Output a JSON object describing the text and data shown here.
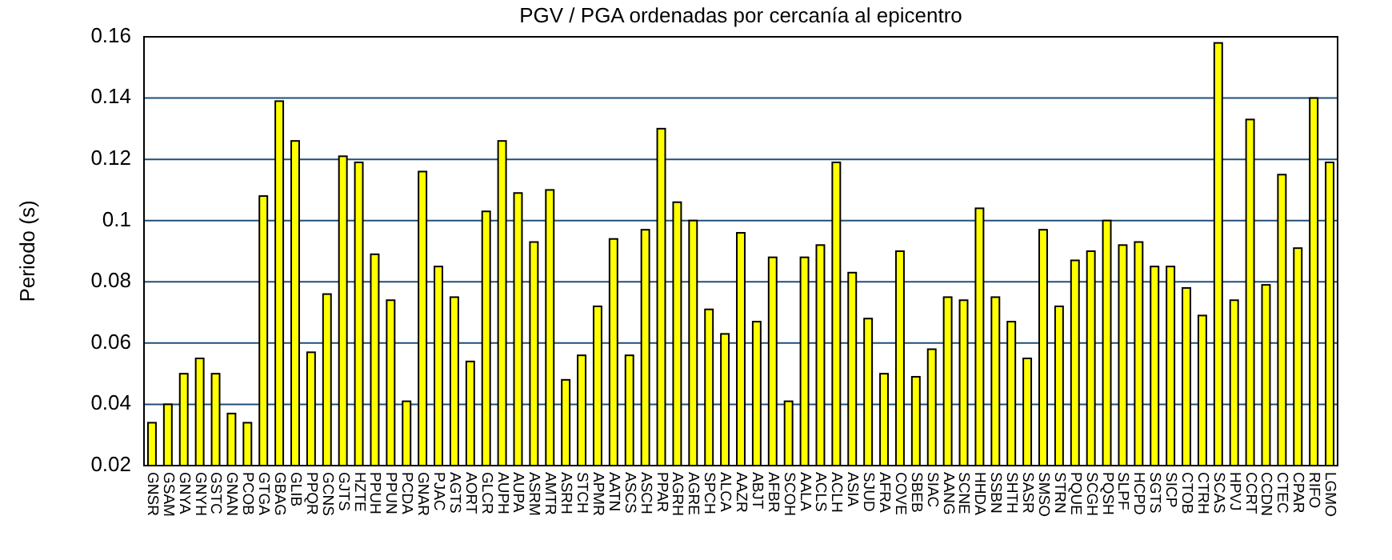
{
  "chart_data": {
    "type": "bar",
    "title": "PGV / PGA ordenadas por cercanía al epicentro",
    "ylabel": "Periodo (s)",
    "categories": [
      "GNSR",
      "GSAM",
      "GNYA",
      "GNYH",
      "GSTC",
      "GNAN",
      "PCOB",
      "GTGA",
      "GBAG",
      "GLIB",
      "PPQR",
      "GCNS",
      "GJTS",
      "HZTE",
      "PPUH",
      "PPUN",
      "PCDA",
      "GNAR",
      "PJAC",
      "AGTS",
      "AORT",
      "GLCR",
      "AUPH",
      "AUPA",
      "ASRM",
      "AMTR",
      "ASRH",
      "STCH",
      "APMR",
      "AATN",
      "ASCS",
      "ASCH",
      "PPAR",
      "AGRH",
      "AGRE",
      "SPCH",
      "ALCA",
      "AAZR",
      "ABJT",
      "AFBR",
      "SCOH",
      "AALA",
      "ACLS",
      "ACLH",
      "ASIA",
      "SJUD",
      "AFRA",
      "COVE",
      "SBEB",
      "SIAC",
      "AANG",
      "SCNE",
      "HHDA",
      "SSBN",
      "SHTH",
      "SASR",
      "SMSO",
      "STRN",
      "PQUE",
      "SCGH",
      "PQSH",
      "SLPF",
      "HCPD",
      "SGTS",
      "SICP",
      "CTOB",
      "CTRH",
      "SCAS",
      "HPVJ",
      "CCRT",
      "CCDN",
      "CTEC",
      "CPAR",
      "RIFO",
      "LGMO"
    ],
    "values": [
      0.034,
      0.04,
      0.05,
      0.055,
      0.05,
      0.037,
      0.034,
      0.108,
      0.139,
      0.126,
      0.057,
      0.076,
      0.121,
      0.119,
      0.089,
      0.074,
      0.041,
      0.116,
      0.085,
      0.075,
      0.054,
      0.103,
      0.126,
      0.109,
      0.093,
      0.11,
      0.048,
      0.056,
      0.072,
      0.094,
      0.056,
      0.097,
      0.13,
      0.106,
      0.1,
      0.071,
      0.063,
      0.096,
      0.067,
      0.088,
      0.041,
      0.088,
      0.092,
      0.119,
      0.083,
      0.068,
      0.05,
      0.09,
      0.049,
      0.058,
      0.075,
      0.074,
      0.104,
      0.075,
      0.067,
      0.055,
      0.097,
      0.072,
      0.087,
      0.09,
      0.1,
      0.092,
      0.093,
      0.085,
      0.085,
      0.078,
      0.069,
      0.158,
      0.074,
      0.133,
      0.079,
      0.115,
      0.091,
      0.14,
      0.119
    ],
    "color": "#ffff00",
    "ylim": [
      0.02,
      0.16
    ],
    "yticks": [
      0.02,
      0.04,
      0.06,
      0.08,
      0.1,
      0.12,
      0.14,
      0.16
    ],
    "grid": "y"
  }
}
